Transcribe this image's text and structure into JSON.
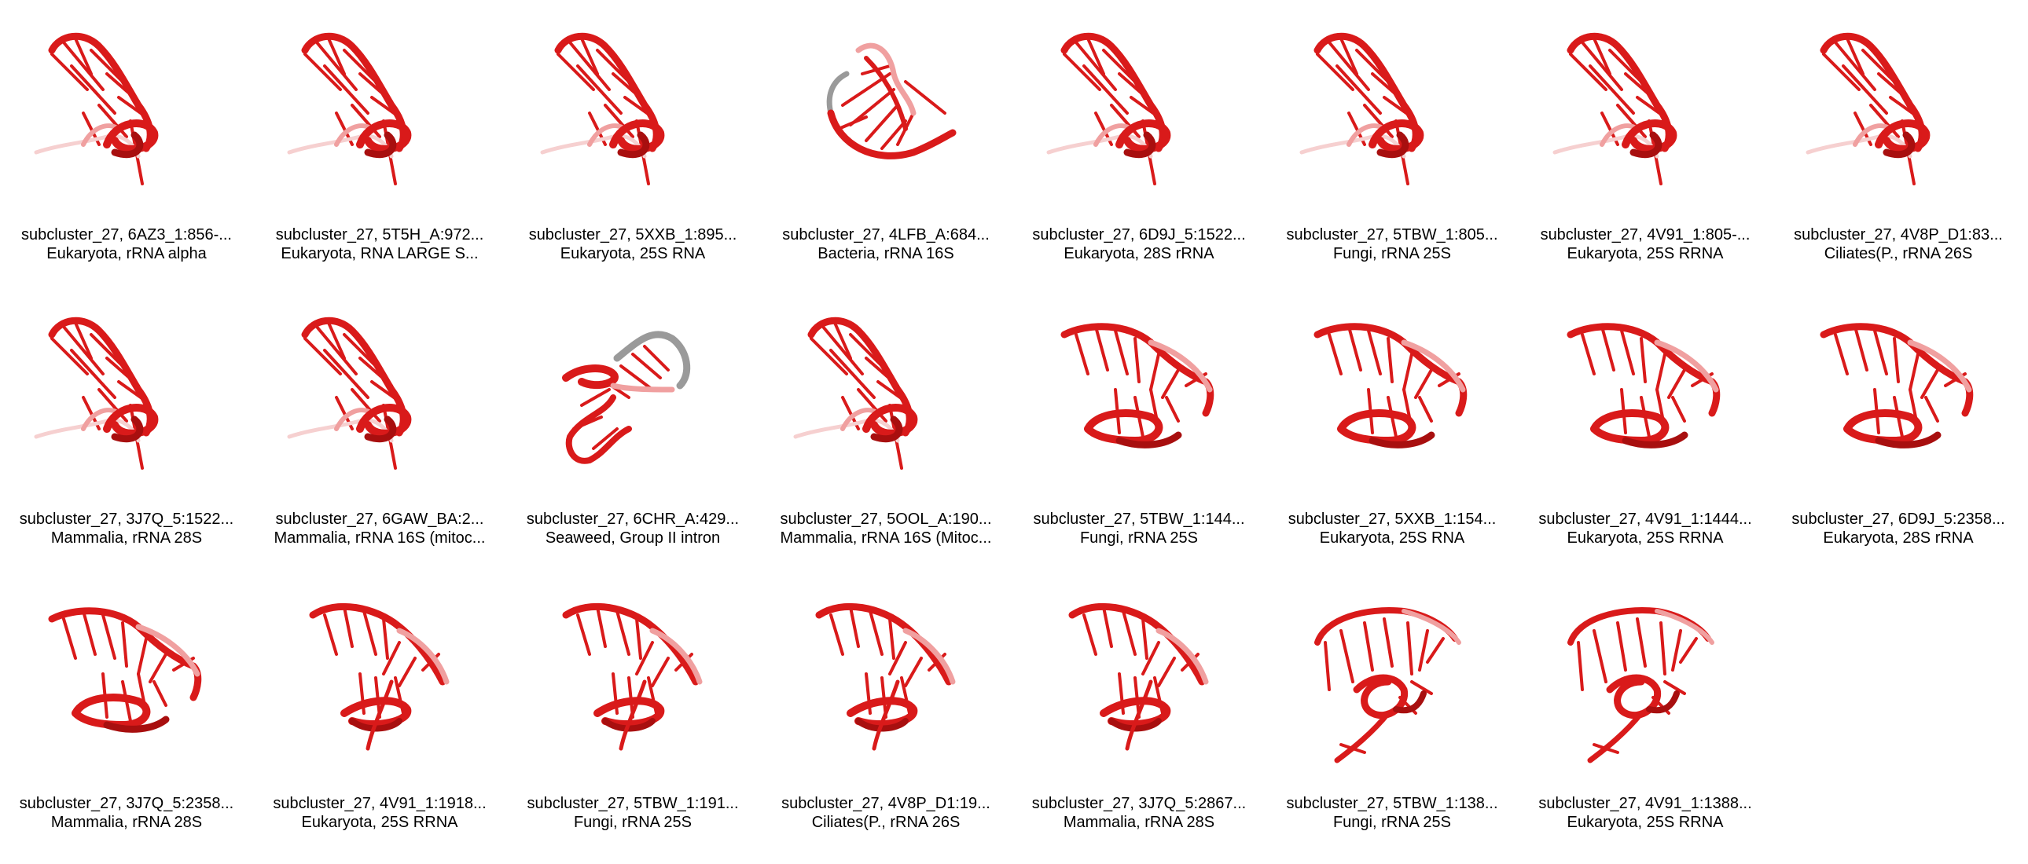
{
  "colors": {
    "strand": "#d91a1a",
    "strand_dark": "#a80f0f",
    "strand_light": "#f0a0a0",
    "strand_pale": "#f6d0d0",
    "gray_strand": "#9a9a9a"
  },
  "panels": [
    {
      "title": "subcluster_27, 6AZ3_1:856-...",
      "subtitle": "Eukaryota, rRNA alpha",
      "shape": "A"
    },
    {
      "title": "subcluster_27, 5T5H_A:972...",
      "subtitle": "Eukaryota, RNA LARGE S...",
      "shape": "A"
    },
    {
      "title": "subcluster_27, 5XXB_1:895...",
      "subtitle": "Eukaryota, 25S RNA",
      "shape": "A"
    },
    {
      "title": "subcluster_27, 4LFB_A:684...",
      "subtitle": "Bacteria, rRNA 16S",
      "shape": "B"
    },
    {
      "title": "subcluster_27, 6D9J_5:1522...",
      "subtitle": "Eukaryota, 28S rRNA",
      "shape": "A"
    },
    {
      "title": "subcluster_27, 5TBW_1:805...",
      "subtitle": "Fungi, rRNA 25S",
      "shape": "A"
    },
    {
      "title": "subcluster_27, 4V91_1:805-...",
      "subtitle": "Eukaryota, 25S RRNA",
      "shape": "A"
    },
    {
      "title": "subcluster_27, 4V8P_D1:83...",
      "subtitle": "Ciliates(P., rRNA 26S",
      "shape": "A"
    },
    {
      "title": "subcluster_27, 3J7Q_5:1522...",
      "subtitle": "Mammalia, rRNA 28S",
      "shape": "A"
    },
    {
      "title": "subcluster_27, 6GAW_BA:2...",
      "subtitle": "Mammalia, rRNA 16S (mitoc...",
      "shape": "A"
    },
    {
      "title": "subcluster_27, 6CHR_A:429...",
      "subtitle": "Seaweed, Group II intron",
      "shape": "C"
    },
    {
      "title": "subcluster_27, 5OOL_A:190...",
      "subtitle": "Mammalia, rRNA 16S (Mitoc...",
      "shape": "A"
    },
    {
      "title": "subcluster_27, 5TBW_1:144...",
      "subtitle": "Fungi, rRNA 25S",
      "shape": "D"
    },
    {
      "title": "subcluster_27, 5XXB_1:154...",
      "subtitle": "Eukaryota, 25S RNA",
      "shape": "D"
    },
    {
      "title": "subcluster_27, 4V91_1:1444...",
      "subtitle": "Eukaryota, 25S RRNA",
      "shape": "D"
    },
    {
      "title": "subcluster_27, 6D9J_5:2358...",
      "subtitle": "Eukaryota, 28S rRNA",
      "shape": "D"
    },
    {
      "title": "subcluster_27, 3J7Q_5:2358...",
      "subtitle": "Mammalia, rRNA 28S",
      "shape": "D"
    },
    {
      "title": "subcluster_27, 4V91_1:1918...",
      "subtitle": "Eukaryota, 25S RRNA",
      "shape": "E"
    },
    {
      "title": "subcluster_27, 5TBW_1:191...",
      "subtitle": "Fungi, rRNA 25S",
      "shape": "E"
    },
    {
      "title": "subcluster_27, 4V8P_D1:19...",
      "subtitle": "Ciliates(P., rRNA 26S",
      "shape": "E"
    },
    {
      "title": "subcluster_27, 3J7Q_5:2867...",
      "subtitle": "Mammalia, rRNA 28S",
      "shape": "E"
    },
    {
      "title": "subcluster_27, 5TBW_1:138...",
      "subtitle": "Fungi, rRNA 25S",
      "shape": "F"
    },
    {
      "title": "subcluster_27, 4V91_1:1388...",
      "subtitle": "Eukaryota, 25S RRNA",
      "shape": "F"
    }
  ]
}
